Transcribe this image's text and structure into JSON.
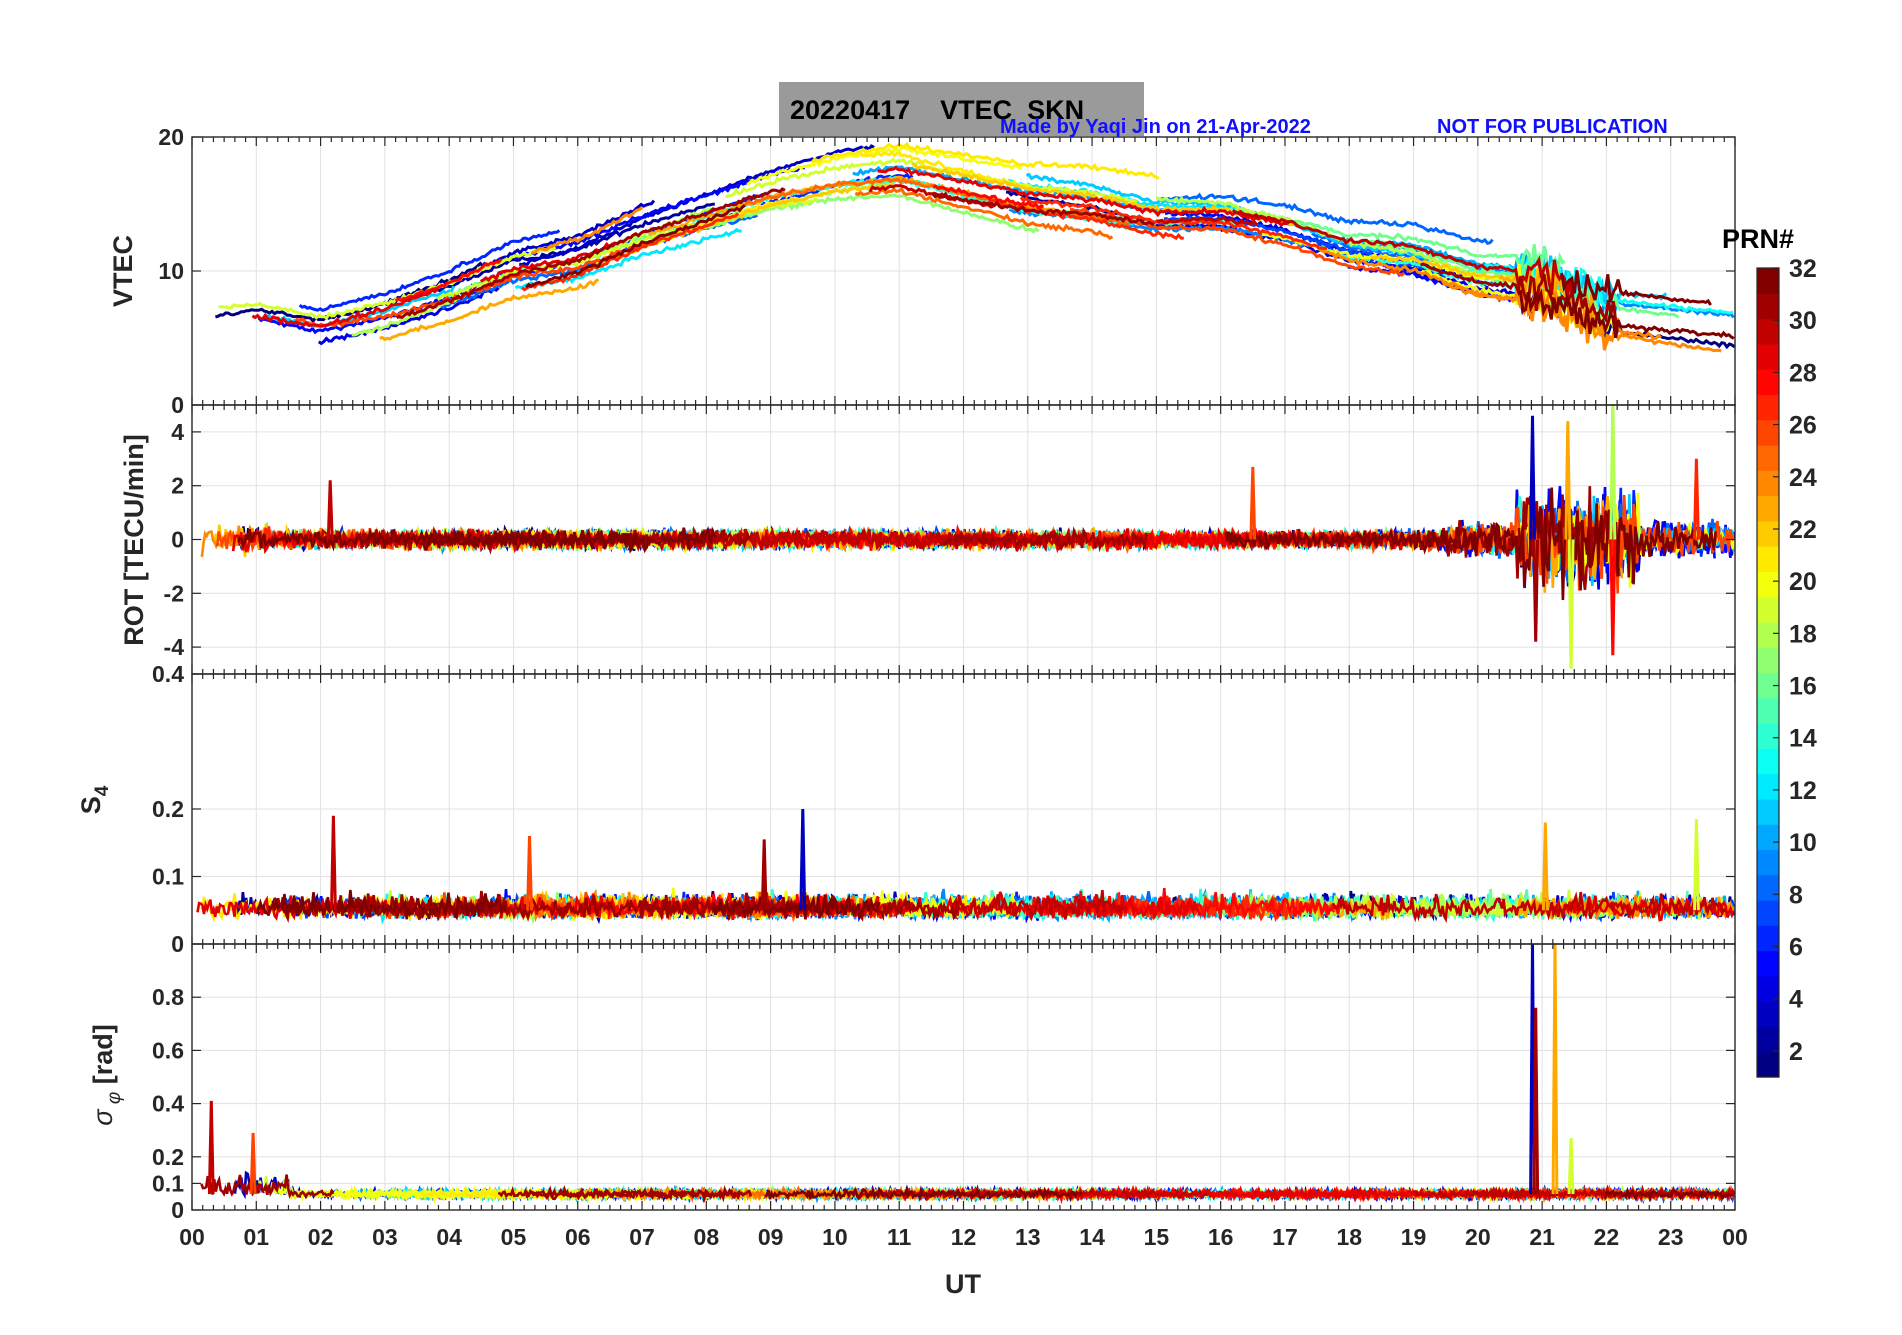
{
  "header": {
    "title": "20220417    VTEC  SKN",
    "credit": "Made by Yaqi Jin on 21-Apr-2022",
    "notice": "NOT FOR PUBLICATION"
  },
  "colorbar": {
    "label": "PRN#",
    "ticks": [
      "2",
      "4",
      "6",
      "8",
      "10",
      "12",
      "14",
      "16",
      "18",
      "20",
      "22",
      "24",
      "26",
      "28",
      "30",
      "32"
    ],
    "range": [
      1,
      32
    ],
    "colormap": "jet"
  },
  "chart_data": [
    {
      "type": "line",
      "panel": "vtec",
      "ylabel": "VTEC",
      "ylim": [
        0,
        20
      ],
      "yticks": [
        "0",
        "10",
        "20"
      ],
      "xlim": [
        0,
        24
      ],
      "grid": true,
      "series_note_values": {
        "x_hours": [
          0,
          1,
          2,
          3,
          4,
          5,
          6,
          7,
          8,
          9,
          10,
          11,
          12,
          13,
          14,
          15,
          16,
          17,
          18,
          19,
          20,
          21,
          22,
          23,
          24
        ],
        "typical_vtec": [
          6,
          6.5,
          5.5,
          6.5,
          8,
          10,
          11,
          13,
          14.5,
          16,
          17,
          17.5,
          16.5,
          15.5,
          15,
          14,
          14,
          13,
          11.5,
          11,
          9.5,
          9,
          7,
          6.5,
          6
        ]
      }
    },
    {
      "type": "line",
      "panel": "rot",
      "ylabel": "ROT [TECU/min]",
      "ylim": [
        -5,
        5
      ],
      "yticks": [
        "-4",
        "-2",
        "0",
        "2",
        "4"
      ],
      "xlim": [
        0,
        24
      ],
      "grid": true,
      "spikes": [
        {
          "x": 2.15,
          "y": 2.2
        },
        {
          "x": 16.5,
          "y": 2.7
        },
        {
          "x": 20.85,
          "y": 4.6
        },
        {
          "x": 20.9,
          "y": -3.8
        },
        {
          "x": 21.4,
          "y": 4.4
        },
        {
          "x": 21.45,
          "y": -4.8
        },
        {
          "x": 22.1,
          "y": 5.3
        },
        {
          "x": 22.1,
          "y": -4.3
        },
        {
          "x": 23.4,
          "y": 3.0
        }
      ]
    },
    {
      "type": "line",
      "panel": "s4",
      "ylabel": "S4",
      "ylim": [
        0,
        0.4
      ],
      "yticks": [
        "0",
        "0.1",
        "0.2",
        "0.4"
      ],
      "xlim": [
        0,
        24
      ],
      "grid": true,
      "baseline": 0.05,
      "spikes": [
        {
          "x": 2.2,
          "y": 0.19
        },
        {
          "x": 5.25,
          "y": 0.16
        },
        {
          "x": 9.5,
          "y": 0.2
        },
        {
          "x": 8.9,
          "y": 0.155
        },
        {
          "x": 21.05,
          "y": 0.18
        },
        {
          "x": 23.4,
          "y": 0.185
        }
      ]
    },
    {
      "type": "line",
      "panel": "sigma_phi",
      "ylabel": "σ_φ [rad]",
      "ylim": [
        0,
        1
      ],
      "yticks": [
        "0",
        "0.1",
        "0.2",
        "0.4",
        "0.6",
        "0.8"
      ],
      "xlim": [
        0,
        24
      ],
      "grid": true,
      "baseline": 0.06,
      "spikes": [
        {
          "x": 0.3,
          "y": 0.41
        },
        {
          "x": 0.95,
          "y": 0.29
        },
        {
          "x": 20.85,
          "y": 1.0
        },
        {
          "x": 20.9,
          "y": 0.76
        },
        {
          "x": 21.2,
          "y": 1.0
        },
        {
          "x": 21.45,
          "y": 0.27
        }
      ]
    }
  ],
  "xaxis": {
    "label": "UT",
    "ticks": [
      "00",
      "01",
      "02",
      "03",
      "04",
      "05",
      "06",
      "07",
      "08",
      "09",
      "10",
      "11",
      "12",
      "13",
      "14",
      "15",
      "16",
      "17",
      "18",
      "19",
      "20",
      "21",
      "22",
      "23",
      "00"
    ]
  }
}
